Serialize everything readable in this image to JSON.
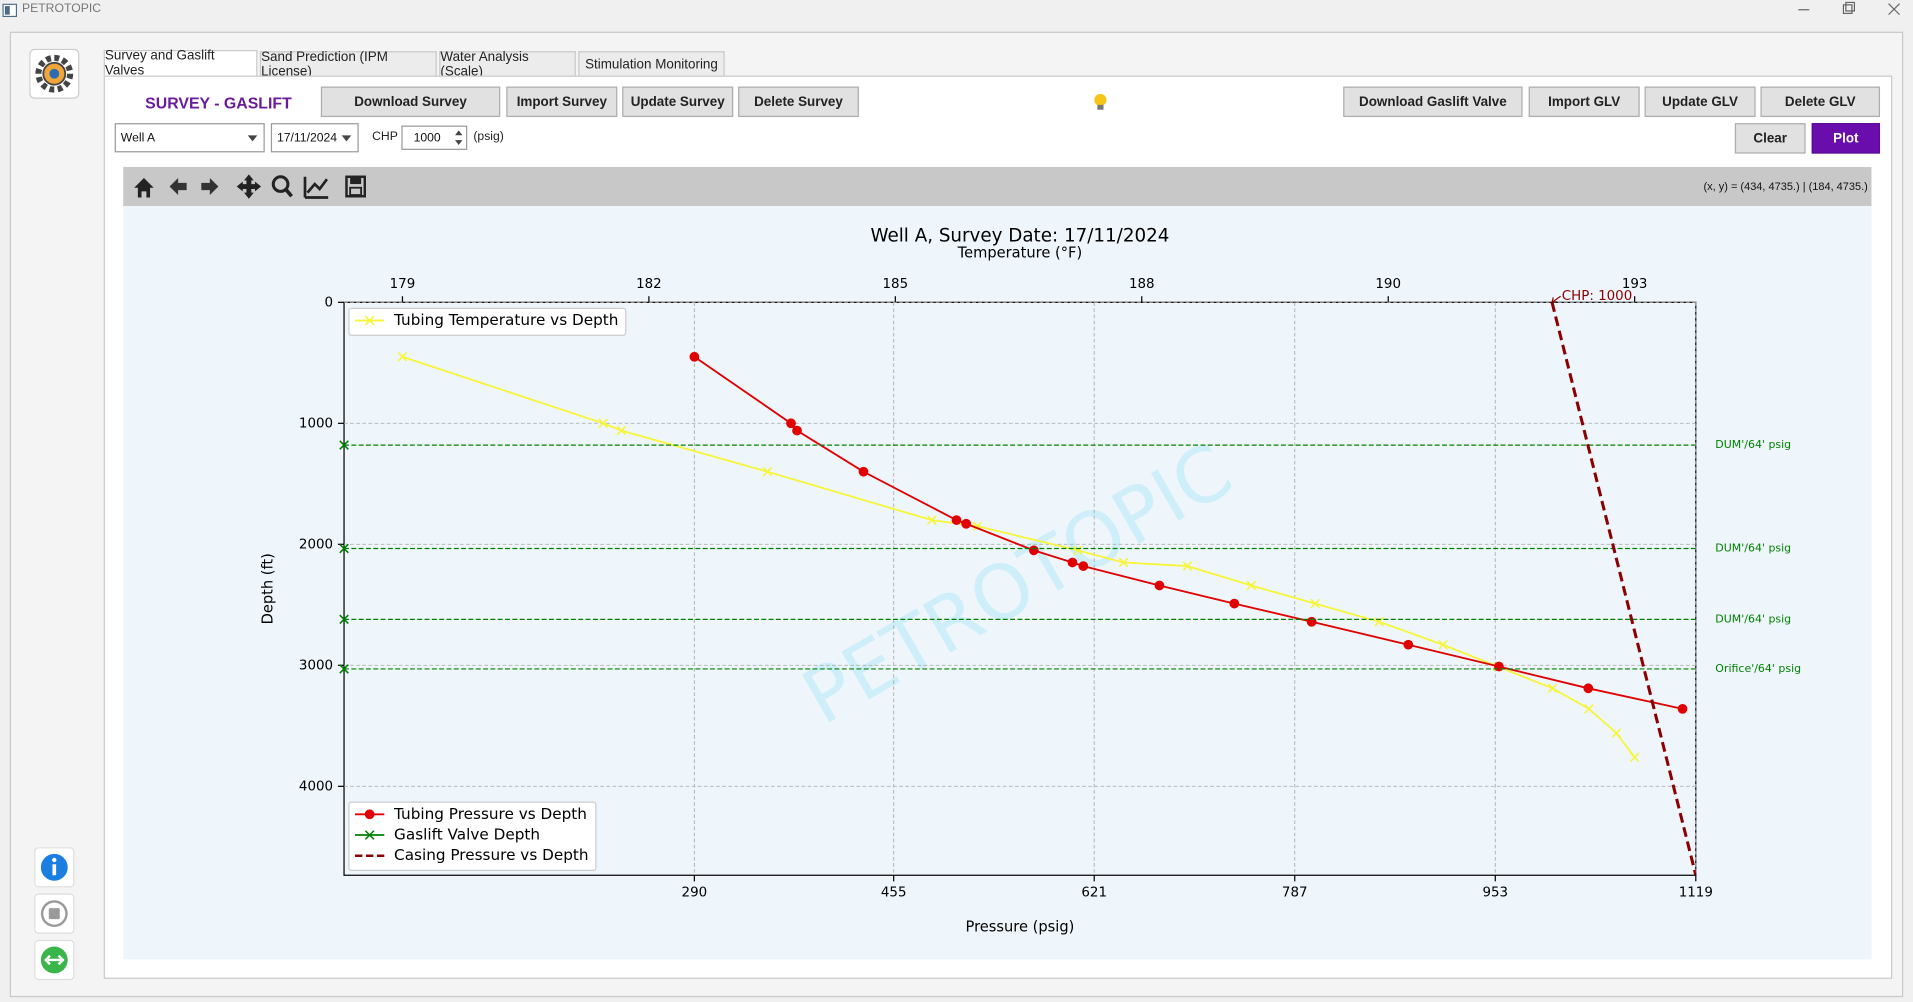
{
  "window": {
    "title": "PETROTOPIC"
  },
  "tabs": [
    "Survey and Gaslift Valves",
    "Sand Prediction (IPM License)",
    "Water Analysis (Scale)",
    "Stimulation Monitoring"
  ],
  "header": {
    "title": "SURVEY - GASLIFT"
  },
  "buttons": {
    "survey": [
      "Download Survey",
      "Import Survey",
      "Update Survey",
      "Delete Survey"
    ],
    "glv": [
      "Download Gaslift Valve",
      "Import GLV",
      "Update GLV",
      "Delete GLV"
    ],
    "clear": "Clear",
    "plot": "Plot"
  },
  "inputs": {
    "well": "Well A",
    "date": "17/11/2024",
    "chp_label": "CHP",
    "chp_value": 1000,
    "unit": "(psig)"
  },
  "toolbar": {
    "coordinates": "(x, y) = (434, 4735.) | (184, 4735.)"
  },
  "chart_data": {
    "type": "line",
    "title": "Well A, Survey Date: 17/11/2024",
    "x2_label": "Temperature (°F)",
    "xlabel": "Pressure (psig)",
    "ylabel": "Depth (ft)",
    "watermark": "PETROTOPIC",
    "xlim": [
      0,
      1119
    ],
    "xticks": [
      290,
      455,
      621,
      787,
      953,
      1119
    ],
    "x2lim": [
      178.76,
      193.57
    ],
    "x2ticks": [
      {
        "value": 179.4,
        "label": "179"
      },
      {
        "value": 182.1,
        "label": "182"
      },
      {
        "value": 184.8,
        "label": "185"
      },
      {
        "value": 187.5,
        "label": "188"
      },
      {
        "value": 190.2,
        "label": "190"
      },
      {
        "value": 192.9,
        "label": "193"
      }
    ],
    "ylim": [
      0,
      4735
    ],
    "yticks": [
      0,
      1000,
      2000,
      3000,
      4000
    ],
    "y_inverted": true,
    "grid": true,
    "series": [
      {
        "name": "Tubing Temperature vs Depth",
        "color": "#f7f53a",
        "marker": "x",
        "axis": "x2",
        "legend": "upper left",
        "x": [
          179.4,
          181.6,
          181.8,
          183.4,
          185.2,
          185.7,
          186.8,
          187.3,
          188.0,
          188.7,
          189.4,
          190.1,
          190.8,
          191.4,
          192.0,
          192.4,
          192.7,
          192.9
        ],
        "values": [
          450,
          1000,
          1060,
          1400,
          1800,
          1850,
          2050,
          2150,
          2180,
          2340,
          2490,
          2640,
          2830,
          3010,
          3190,
          3360,
          3560,
          3760
        ]
      },
      {
        "name": "Tubing Pressure vs Depth",
        "color": "#e00000",
        "marker": "o",
        "legend": "lower left",
        "x": [
          290,
          370,
          375,
          430,
          507,
          515,
          571,
          603,
          612,
          675,
          737,
          801,
          881,
          956,
          1030,
          1108
        ],
        "values": [
          450,
          1000,
          1060,
          1400,
          1800,
          1830,
          2050,
          2150,
          2180,
          2340,
          2490,
          2640,
          2830,
          3010,
          3190,
          3360
        ]
      },
      {
        "name": "Gaslift Valve Depth",
        "color": "#008000",
        "marker": "x",
        "style": "hline",
        "legend": "lower left",
        "x": [
          0,
          0,
          0,
          0
        ],
        "values": [
          1180,
          2035,
          2620,
          3030
        ],
        "labels": [
          "DUM'/64' psig",
          "DUM'/64' psig",
          "DUM'/64' psig",
          "Orifice'/64' psig"
        ]
      },
      {
        "name": "Casing Pressure vs Depth",
        "color": "#8b0000",
        "dashed": true,
        "legend": "lower left",
        "x": [
          1000,
          1119
        ],
        "values": [
          0,
          4735
        ]
      }
    ],
    "annotation": "CHP: 1000"
  }
}
